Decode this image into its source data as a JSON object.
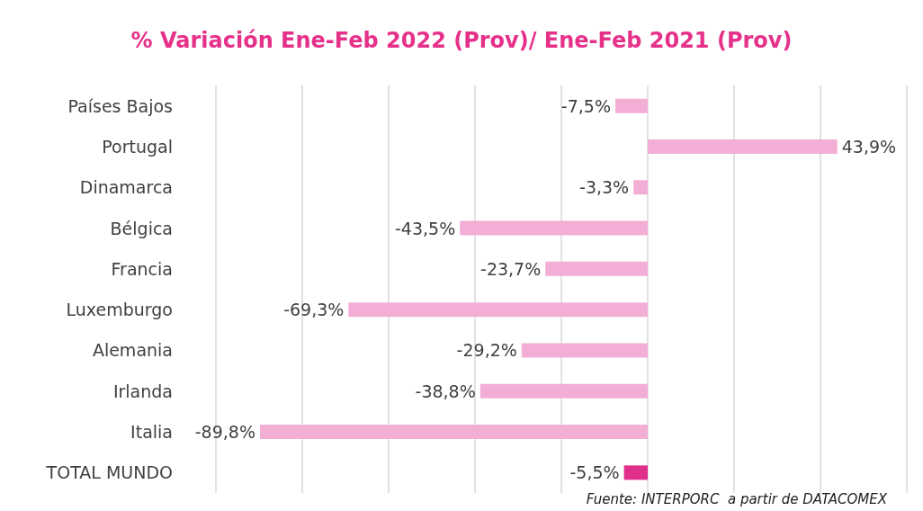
{
  "chart_data": {
    "type": "bar",
    "orientation": "horizontal",
    "title": "% Variación Ene-Feb 2022 (Prov)/ Ene-Feb 2021 (Prov)",
    "categories": [
      "Países Bajos",
      "Portugal",
      "Dinamarca",
      "Bélgica",
      "Francia",
      "Luxemburgo",
      "Alemania",
      "Irlanda",
      "Italia",
      "TOTAL MUNDO"
    ],
    "values": [
      -7.5,
      43.9,
      -3.3,
      -43.5,
      -23.7,
      -69.3,
      -29.2,
      -38.8,
      -89.8,
      -5.5
    ],
    "colors": [
      "#f2aed4",
      "#f2aed4",
      "#f2aed4",
      "#f2aed4",
      "#f2aed4",
      "#f2aed4",
      "#f2aed4",
      "#f2aed4",
      "#f2aed4",
      "#e0308a"
    ],
    "value_labels": [
      "-7,5%",
      "43,9%",
      "-3,3%",
      "-43,5%",
      "-23,7%",
      "-69,3%",
      "-29,2%",
      "-38,8%",
      "-89,8%",
      "-5,5%"
    ],
    "xlim": [
      -100,
      60
    ],
    "xticks": [
      {
        "value": -100,
        "label": null
      },
      {
        "value": -80,
        "label": null
      },
      {
        "value": -60,
        "label": null
      },
      {
        "value": -40,
        "label": null
      },
      {
        "value": -20,
        "label": null
      },
      {
        "value": 0,
        "label": null
      },
      {
        "value": 20,
        "label": null
      },
      {
        "value": 40,
        "label": null
      },
      {
        "value": 60,
        "label": null
      }
    ],
    "grid": "x",
    "tick_labels": "y",
    "annotations": [
      "Fuente: INTERPORC  a partir de DATACOMEX"
    ]
  }
}
